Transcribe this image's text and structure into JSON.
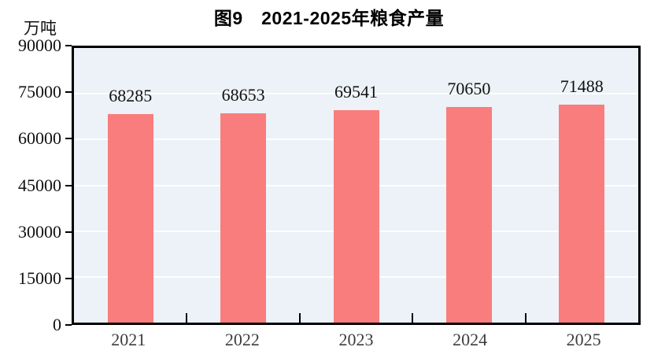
{
  "figure": {
    "title": "图9　2021-2025年粮食产量",
    "unit_label": "万吨"
  },
  "chart_data": {
    "type": "bar",
    "title": "图9　2021-2025年粮食产量",
    "ylabel": "万吨",
    "xlabel": "",
    "categories": [
      "2021",
      "2022",
      "2023",
      "2024",
      "2025"
    ],
    "values": [
      68285,
      68653,
      69541,
      70650,
      71488
    ],
    "yticks": [
      90000,
      75000,
      60000,
      45000,
      30000,
      15000,
      0
    ],
    "ylim": [
      0,
      90000
    ],
    "grid": true,
    "legend": "none",
    "bar_color": "#FA7D7D",
    "plot_background": "#ECF2F7",
    "gridline_color": "#FFFFFF",
    "axis_color": "#000000"
  }
}
